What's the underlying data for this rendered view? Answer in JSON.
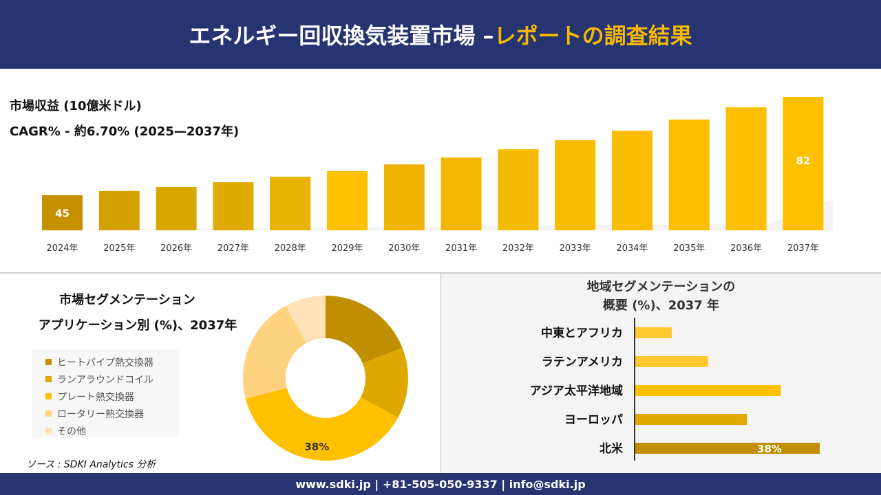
{
  "header": {
    "title_main": "エネルギー回収換気装置市場 –",
    "title_accent": "レポートの調査結果"
  },
  "revenue": {
    "label": "市場収益 (10億米ドル)",
    "cagr": "CAGR% - 約6.70% (2025—2037年)"
  },
  "chart_data": [
    {
      "type": "bar",
      "categories": [
        "2024年",
        "2025年",
        "2026年",
        "2027年",
        "2028年",
        "2029年",
        "2030年",
        "2031年",
        "2032年",
        "2033年",
        "2034年",
        "2035年",
        "2036年",
        "2037年"
      ],
      "values": [
        45,
        46.6,
        48.1,
        49.9,
        52.0,
        54.1,
        56.6,
        59.2,
        62.3,
        65.7,
        69.3,
        73.5,
        78.1,
        82
      ],
      "data_labels": {
        "0": "45",
        "13": "82"
      },
      "ylabel": "市場収益 (10億米ドル)",
      "colors": [
        "#c49000",
        "#d4a200",
        "#d9a600",
        "#dfab00",
        "#e8b300",
        "#ffc000",
        "#f0b400",
        "#f3b700",
        "#f6ba00",
        "#f8bc00",
        "#fabd00",
        "#fcbe00",
        "#fdbf00",
        "#ffc000"
      ]
    },
    {
      "type": "pie",
      "title_line1": "市場セグメンテーション",
      "title_line2": "アプリケーション別 (%)、2037年",
      "categories": [
        "ヒートパイプ熱交換器",
        "ランアラウンドコイル",
        "プレート熱交換器",
        "ロータリー熱交換器",
        "その他"
      ],
      "values": [
        19,
        14,
        38,
        21,
        8
      ],
      "data_labels": {
        "2": "38%"
      },
      "colors": [
        "#bf8f00",
        "#dfa800",
        "#ffc000",
        "#ffd27f",
        "#ffe2b8"
      ],
      "legend": "left"
    },
    {
      "type": "bar",
      "orientation": "horizontal",
      "title_line1": "地域セグメンテーションの",
      "title_line2": "概要 (%)、2037 年",
      "categories": [
        "中東とアフリカ",
        "ラテンアメリカ",
        "アジア太平洋地域",
        "ヨーロッパ",
        "北米"
      ],
      "values": [
        7.5,
        15,
        30,
        23,
        38
      ],
      "data_labels": {
        "4": "38%"
      },
      "colors": [
        "#ffc82e",
        "#ffc82e",
        "#ffc000",
        "#e0a800",
        "#bf8f00"
      ]
    }
  ],
  "source": "ソース : SDKI Analytics 分析",
  "footer": "www.sdki.jp | +81-505-050-9337 | info@sdki.jp"
}
